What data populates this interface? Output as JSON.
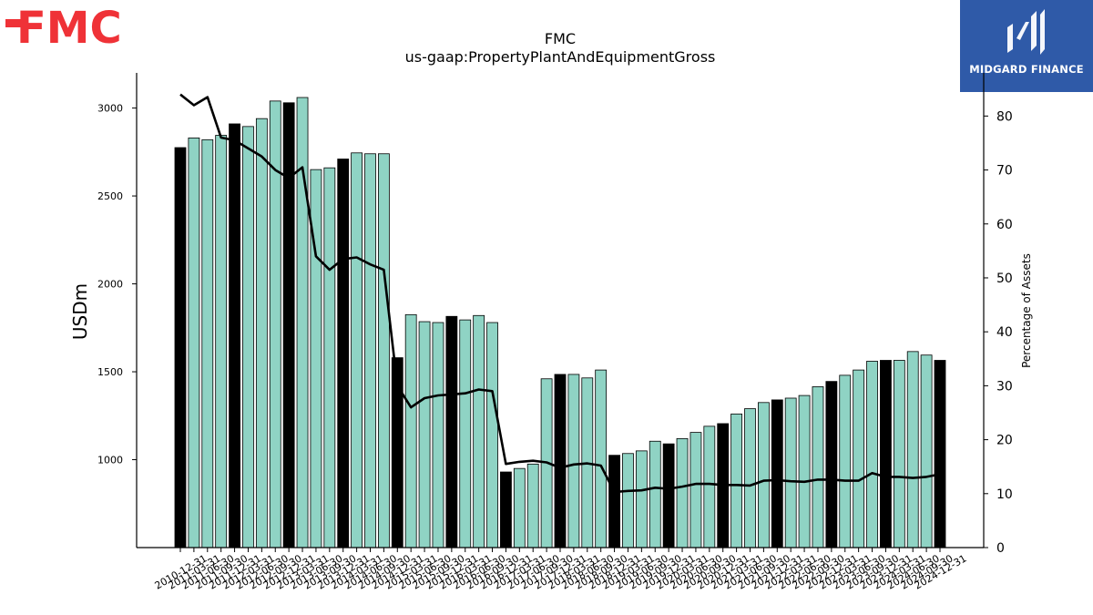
{
  "logos": {
    "left_text": "FMC",
    "right_text": "MIDGARD FINANCE"
  },
  "chart_data": {
    "type": "bar",
    "title": "FMC",
    "subtitle": "us-gaap:PropertyPlantAndEquipmentGross",
    "ylabel": "USDm",
    "y2label": "Percentage of Assets",
    "ylim": [
      500,
      3200
    ],
    "y2lim": [
      0,
      88
    ],
    "yticks": [
      1000,
      1500,
      2000,
      2500,
      3000
    ],
    "y2ticks": [
      0,
      10,
      20,
      30,
      40,
      50,
      60,
      70,
      80
    ],
    "colors": {
      "annual": "#000000",
      "quarter": "#8fd3c4",
      "line": "#000000"
    },
    "categories": [
      "2010-12-31",
      "2011-03-31",
      "2011-06-30",
      "2011-09-30",
      "2011-12-31",
      "2012-03-31",
      "2012-06-30",
      "2012-09-30",
      "2012-12-31",
      "2013-03-31",
      "2013-06-30",
      "2013-09-30",
      "2013-12-31",
      "2014-03-31",
      "2014-06-30",
      "2014-09-30",
      "2014-12-31",
      "2015-03-31",
      "2015-06-30",
      "2015-09-30",
      "2015-12-31",
      "2016-03-31",
      "2016-06-30",
      "2016-09-30",
      "2016-12-31",
      "2017-03-31",
      "2017-06-30",
      "2017-09-30",
      "2017-12-31",
      "2018-03-31",
      "2018-06-30",
      "2018-09-30",
      "2018-12-31",
      "2019-03-31",
      "2019-06-30",
      "2019-09-30",
      "2019-12-31",
      "2020-03-31",
      "2020-06-30",
      "2020-09-30",
      "2020-12-31",
      "2021-03-31",
      "2021-06-30",
      "2021-09-30",
      "2021-12-31",
      "2022-03-31",
      "2022-06-30",
      "2022-09-30",
      "2022-12-31",
      "2023-03-31",
      "2023-06-30",
      "2023-09-30",
      "2023-12-31",
      "2024-03-31",
      "2024-06-30",
      "2024-09-30",
      "2024-12-31"
    ],
    "annual": [
      true,
      false,
      false,
      false,
      true,
      false,
      false,
      false,
      true,
      false,
      false,
      false,
      true,
      false,
      false,
      false,
      true,
      false,
      false,
      false,
      true,
      false,
      false,
      false,
      true,
      false,
      false,
      false,
      true,
      false,
      false,
      false,
      true,
      false,
      false,
      false,
      true,
      false,
      false,
      false,
      true,
      false,
      false,
      false,
      true,
      false,
      false,
      false,
      true,
      false,
      false,
      false,
      true,
      false,
      false,
      false,
      true
    ],
    "series": [
      {
        "name": "USDm",
        "values": [
          2775,
          2830,
          2820,
          2845,
          2910,
          2895,
          2940,
          3040,
          3030,
          3060,
          2650,
          2660,
          2710,
          2745,
          2740,
          2740,
          1580,
          1825,
          1785,
          1780,
          1815,
          1795,
          1820,
          1780,
          930,
          950,
          975,
          1460,
          1485,
          1485,
          1465,
          1510,
          1025,
          1035,
          1050,
          1105,
          1090,
          1120,
          1155,
          1190,
          1205,
          1260,
          1290,
          1325,
          1340,
          1350,
          1365,
          1415,
          1445,
          1480,
          1510,
          1560,
          1565,
          1565,
          1615,
          1595,
          1565
        ]
      },
      {
        "name": "Percentage of Assets",
        "values": [
          84.0,
          82.0,
          83.5,
          76.0,
          75.5,
          74.0,
          72.5,
          70.0,
          68.5,
          70.5,
          54.0,
          51.5,
          53.5,
          53.8,
          52.5,
          51.5,
          30.0,
          26.0,
          27.7,
          28.2,
          28.4,
          28.6,
          29.3,
          29.0,
          15.5,
          15.9,
          16.1,
          15.8,
          14.8,
          15.4,
          15.6,
          15.2,
          10.3,
          10.5,
          10.6,
          11.1,
          10.9,
          11.3,
          11.8,
          11.8,
          11.6,
          11.6,
          11.5,
          12.4,
          12.5,
          12.3,
          12.2,
          12.6,
          12.6,
          12.4,
          12.4,
          13.8,
          13.1,
          13.1,
          12.9,
          13.1,
          13.6
        ]
      }
    ]
  }
}
